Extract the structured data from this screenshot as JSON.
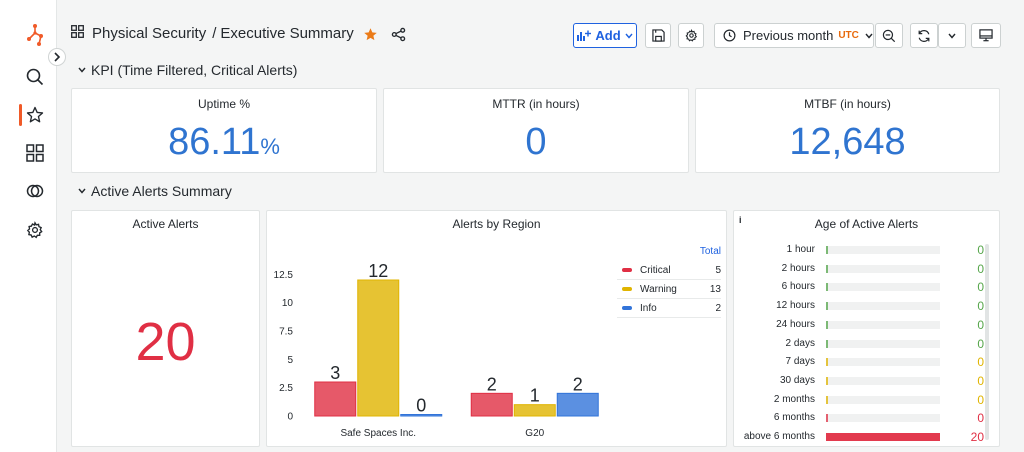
{
  "header": {
    "breadcrumb_parent": "Physical Security",
    "breadcrumb_sep": "/",
    "breadcrumb_current": "Executive Summary",
    "add_label": "Add",
    "time_range": "Previous month",
    "timezone": "UTC"
  },
  "rows": {
    "kpi": "KPI (Time Filtered, Critical Alerts)",
    "alerts": "Active Alerts Summary"
  },
  "kpi": {
    "uptime": {
      "title": "Uptime %",
      "value": "86.11",
      "unit": "%"
    },
    "mttr": {
      "title": "MTTR (in hours)",
      "value": "0"
    },
    "mtbf": {
      "title": "MTBF (in hours)",
      "value": "12,648"
    }
  },
  "active_alerts": {
    "title": "Active Alerts",
    "value": "20"
  },
  "region_chart": {
    "title": "Alerts by Region",
    "legend_header": "Total",
    "legend": [
      {
        "name": "Critical",
        "total": "5",
        "color": "#e02f44"
      },
      {
        "name": "Warning",
        "total": "13",
        "color": "#e0b400"
      },
      {
        "name": "Info",
        "total": "2",
        "color": "#3274d9"
      }
    ]
  },
  "chart_data": {
    "type": "bar",
    "title": "Alerts by Region",
    "categories": [
      "Safe Spaces Inc.",
      "G20"
    ],
    "series": [
      {
        "name": "Critical",
        "values": [
          3,
          2
        ]
      },
      {
        "name": "Warning",
        "values": [
          12,
          1
        ]
      },
      {
        "name": "Info",
        "values": [
          0,
          2
        ]
      }
    ],
    "yticks": [
      "0",
      "2.5",
      "5",
      "7.5",
      "10",
      "12.5"
    ],
    "ylim": [
      0,
      13.5
    ],
    "legend_position": "right",
    "colors": {
      "Critical": "#e02f44",
      "Warning": "#e0b400",
      "Info": "#3274d9"
    }
  },
  "age_chart": {
    "title": "Age of Active Alerts",
    "info_icon": "i",
    "max": 20,
    "rows": [
      {
        "label": "1 hour",
        "value": 0,
        "color": "#56a64b"
      },
      {
        "label": "2 hours",
        "value": 0,
        "color": "#56a64b"
      },
      {
        "label": "6 hours",
        "value": 0,
        "color": "#56a64b"
      },
      {
        "label": "12 hours",
        "value": 0,
        "color": "#56a64b"
      },
      {
        "label": "24 hours",
        "value": 0,
        "color": "#56a64b"
      },
      {
        "label": "2 days",
        "value": 0,
        "color": "#56a64b"
      },
      {
        "label": "7 days",
        "value": 0,
        "color": "#e0b400"
      },
      {
        "label": "30 days",
        "value": 0,
        "color": "#e0b400"
      },
      {
        "label": "2 months",
        "value": 0,
        "color": "#e0b400"
      },
      {
        "label": "6 months",
        "value": 0,
        "color": "#e02f44"
      },
      {
        "label": "above 6 months",
        "value": 20,
        "color": "#e02f44"
      }
    ]
  }
}
